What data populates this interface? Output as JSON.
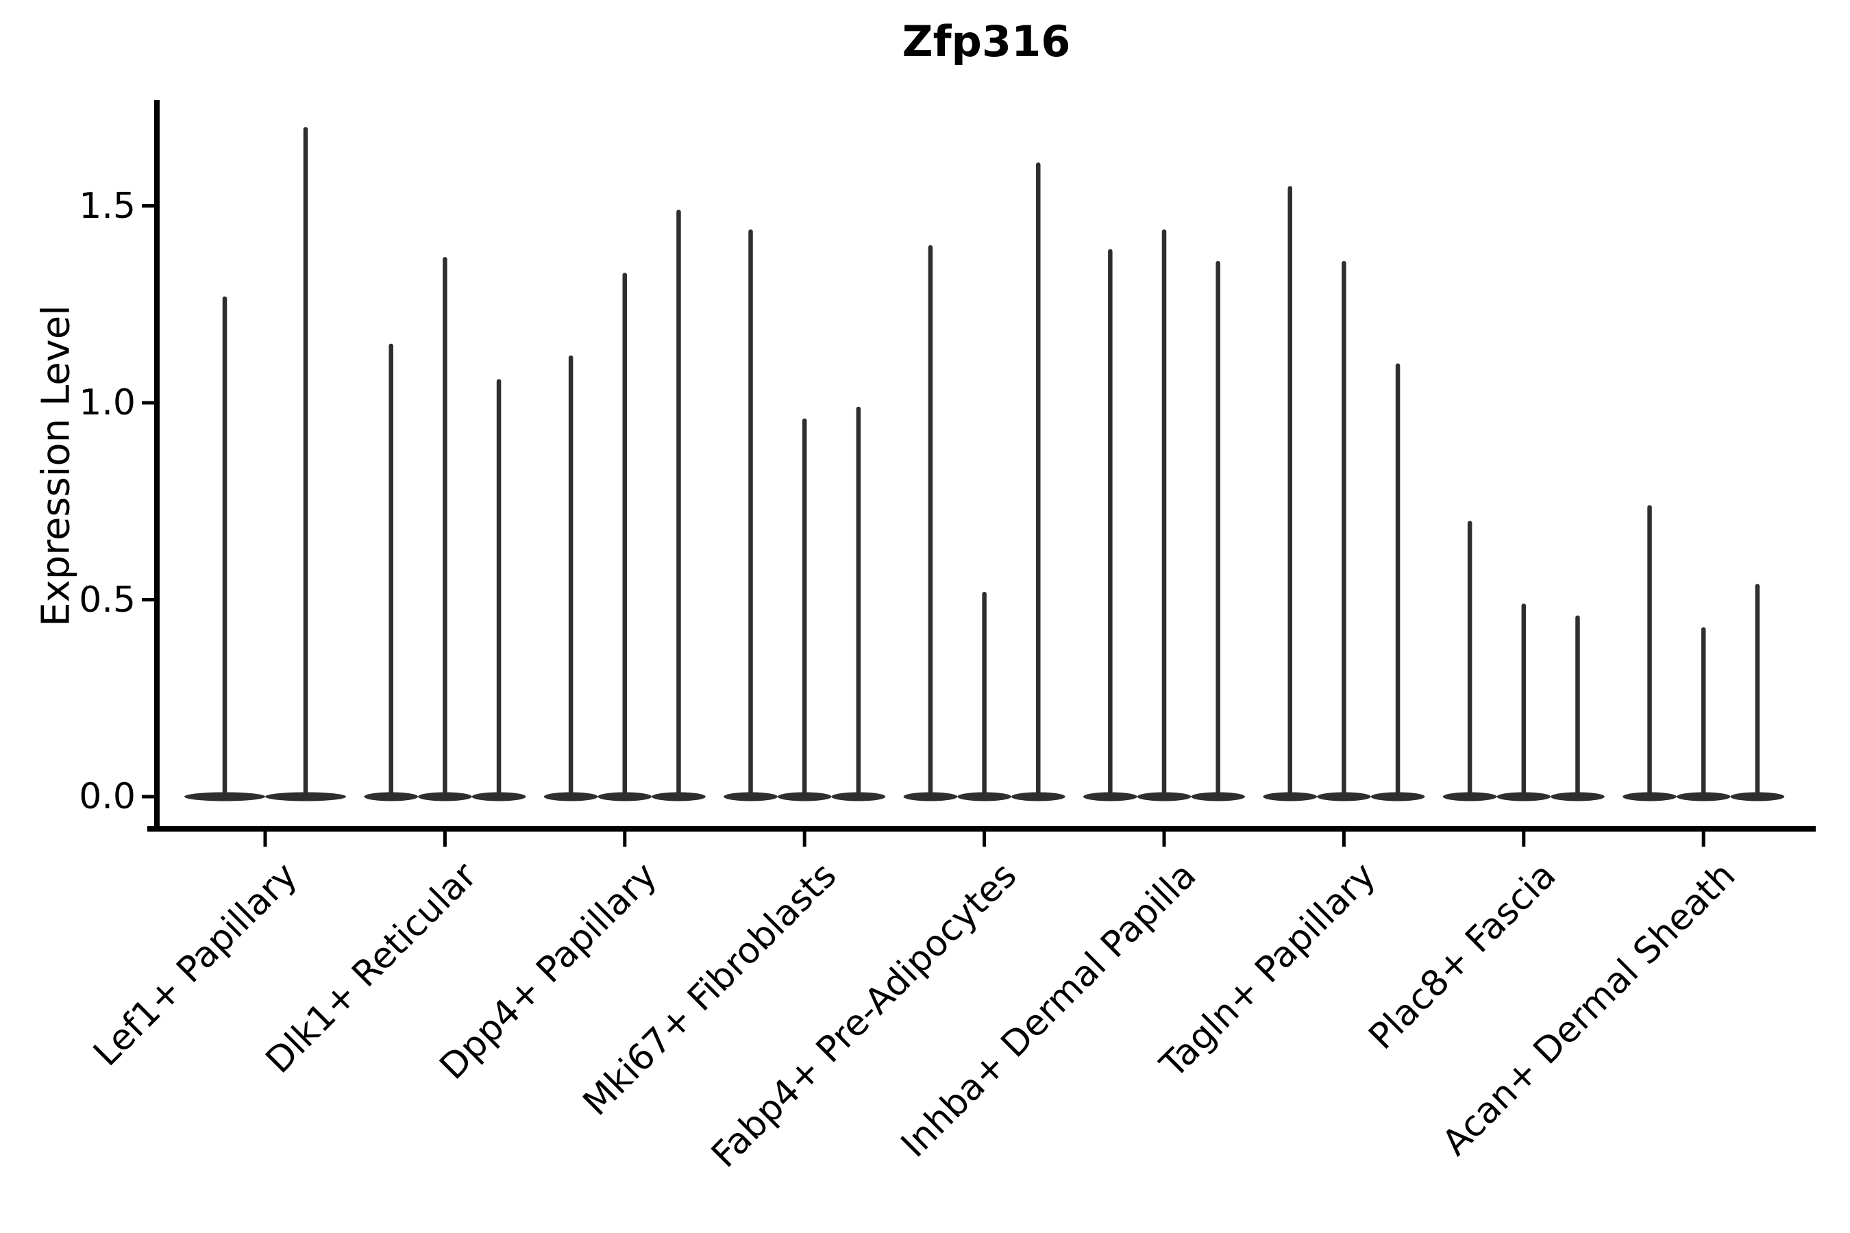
{
  "chart_data": {
    "type": "violin",
    "title": "Zfp316",
    "ylabel": "Expression Level",
    "xlabel": "",
    "yticks": [
      "0.0",
      "0.5",
      "1.0",
      "1.5"
    ],
    "ytick_values": [
      0.0,
      0.5,
      1.0,
      1.5
    ],
    "ylim": [
      -0.05,
      1.77
    ],
    "grid": false,
    "legend": null,
    "description": "Violin plot of single-gene expression; each cell-type group contains 2-3 very thin violins whose mass sits at 0 with a narrow tail rising to the listed peak expression value.",
    "groups": [
      {
        "label": "Lef1+ Papillary",
        "violin_peaks": [
          1.27,
          1.7
        ]
      },
      {
        "label": "Dlk1+ Reticular",
        "violin_peaks": [
          1.15,
          1.37,
          1.06
        ]
      },
      {
        "label": "Dpp4+ Papillary",
        "violin_peaks": [
          1.12,
          1.33,
          1.49
        ]
      },
      {
        "label": "Mki67+ Fibroblasts",
        "violin_peaks": [
          1.44,
          0.96,
          0.99
        ]
      },
      {
        "label": "Fabp4+ Pre-Adipocytes",
        "violin_peaks": [
          1.4,
          0.52,
          1.61
        ]
      },
      {
        "label": "Inhba+ Dermal Papilla",
        "violin_peaks": [
          1.39,
          1.44,
          1.36
        ]
      },
      {
        "label": "Tagln+ Papillary",
        "violin_peaks": [
          1.55,
          1.36,
          1.1
        ]
      },
      {
        "label": "Plac8+ Fascia",
        "violin_peaks": [
          0.7,
          0.49,
          0.46
        ]
      },
      {
        "label": "Acan+ Dermal Sheath",
        "violin_peaks": [
          0.74,
          0.43,
          0.54
        ]
      }
    ],
    "colors": {
      "violin": "#2e2e2e",
      "axis": "#000000",
      "text": "#000000",
      "background": "#ffffff"
    }
  }
}
